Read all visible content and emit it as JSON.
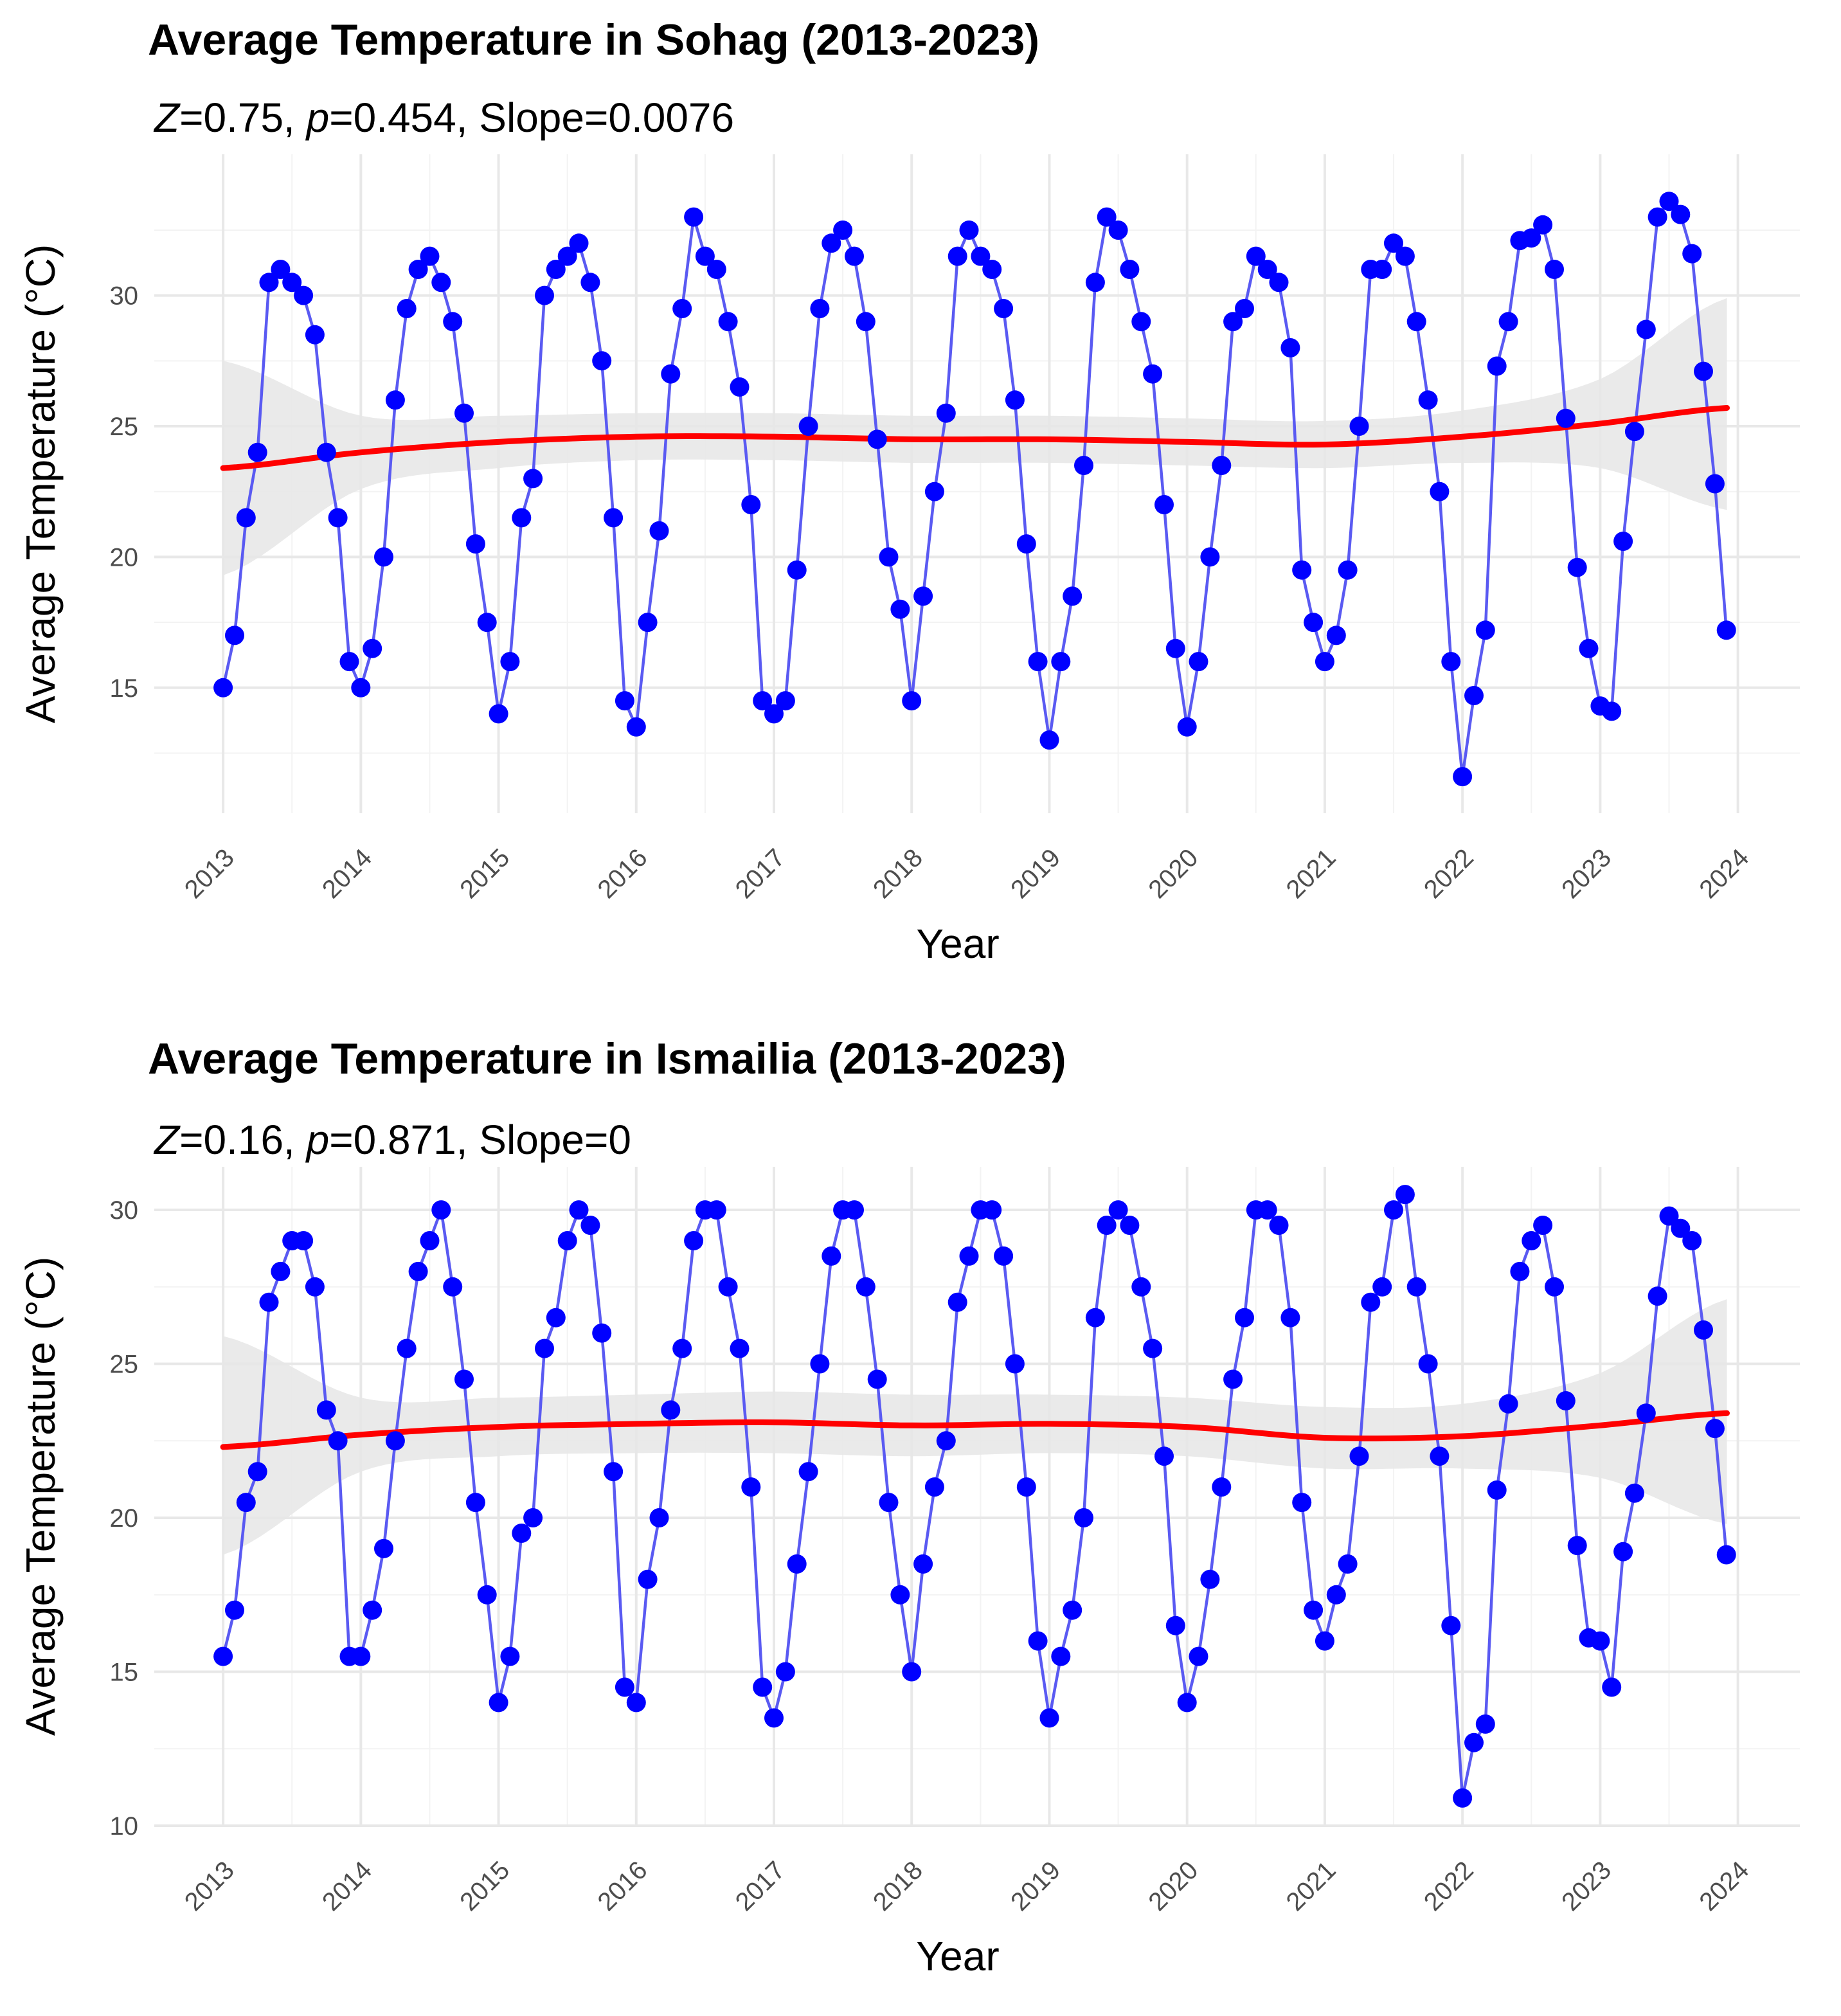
{
  "colors": {
    "series_line": "#5a5af2",
    "series_point": "#0000ff",
    "trend": "#ff0000",
    "band": "#e6e6e6",
    "grid_major": "#e8e8e8",
    "grid_minor": "#f3f3f3",
    "tick_text": "#4d4d4d",
    "title_text": "#000000"
  },
  "chart_data": [
    {
      "type": "line",
      "title": "Average Temperature in Sohag (2013-2023)",
      "subtitle": {
        "z_label": "Z",
        "z_value": "=0.75,",
        "p_label": "p",
        "p_value": "=0.454,",
        "slope": "Slope=0.0076"
      },
      "xlabel": "Year",
      "ylabel": "Average Temperature (°C)",
      "xlim": [
        2012.5,
        2024.45
      ],
      "ylim": [
        10.2,
        35.4
      ],
      "x_ticks": [
        "2013",
        "2014",
        "2015",
        "2016",
        "2017",
        "2018",
        "2019",
        "2020",
        "2021",
        "2022",
        "2023",
        "2024"
      ],
      "y_ticks": [
        "15",
        "20",
        "25",
        "30"
      ],
      "y_tick_values": [
        15,
        20,
        25,
        30
      ],
      "x_start": 2013,
      "x_step": 0.0833333,
      "series": [
        {
          "name": "Average Temperature",
          "values": [
            15,
            17,
            21.5,
            24,
            30.5,
            31,
            30.5,
            30,
            28.5,
            24,
            21.5,
            16,
            15,
            16.5,
            20,
            26,
            29.5,
            31,
            31.5,
            30.5,
            29,
            25.5,
            20.5,
            17.5,
            14,
            16,
            21.5,
            23,
            30,
            31,
            31.5,
            32,
            30.5,
            27.5,
            21.5,
            14.5,
            13.5,
            17.5,
            21,
            27,
            29.5,
            33,
            31.5,
            31,
            29,
            26.5,
            22,
            14.5,
            14,
            14.5,
            19.5,
            25,
            29.5,
            32,
            32.5,
            31.5,
            29,
            24.5,
            20,
            18,
            14.5,
            18.5,
            22.5,
            25.5,
            31.5,
            32.5,
            31.5,
            31,
            29.5,
            26,
            20.5,
            16,
            13,
            16,
            18.5,
            23.5,
            30.5,
            33,
            32.5,
            31,
            29,
            27,
            22,
            16.5,
            13.5,
            16,
            20,
            23.5,
            29,
            29.5,
            31.5,
            31,
            30.5,
            28,
            19.5,
            17.5,
            16,
            17,
            19.5,
            25,
            31,
            31,
            32,
            31.5,
            29,
            26,
            22.5,
            16,
            11.6,
            14.7,
            17.2,
            27.3,
            29,
            32.1,
            32.2,
            32.7,
            31,
            25.3,
            19.6,
            16.5,
            14.3,
            14.1,
            20.6,
            24.8,
            28.7,
            33,
            33.6,
            33.1,
            31.6,
            27.1,
            22.8,
            17.2
          ]
        }
      ],
      "trend": {
        "x": [
          2013,
          2014,
          2015,
          2016,
          2017,
          2018,
          2019,
          2020,
          2021,
          2022,
          2023,
          2023.92
        ],
        "y": [
          23.4,
          24.0,
          24.4,
          24.6,
          24.6,
          24.5,
          24.5,
          24.4,
          24.3,
          24.6,
          25.1,
          25.7
        ],
        "ci_low": [
          19.3,
          22.6,
          23.4,
          23.7,
          23.7,
          23.6,
          23.6,
          23.5,
          23.4,
          23.6,
          23.4,
          21.8
        ],
        "ci_high": [
          27.5,
          25.4,
          25.4,
          25.5,
          25.5,
          25.4,
          25.4,
          25.3,
          25.2,
          25.6,
          26.8,
          29.9
        ]
      }
    },
    {
      "type": "line",
      "title": "Average Temperature in Ismailia (2013-2023)",
      "subtitle": {
        "z_label": "Z",
        "z_value": "=0.16,",
        "p_label": "p",
        "p_value": "=0.871,",
        "slope": "Slope=0"
      },
      "xlabel": "Year",
      "ylabel": "Average Temperature (°C)",
      "xlim": [
        2012.5,
        2024.45
      ],
      "ylim": [
        10,
        31.4
      ],
      "x_ticks": [
        "2013",
        "2014",
        "2015",
        "2016",
        "2017",
        "2018",
        "2019",
        "2020",
        "2021",
        "2022",
        "2023",
        "2024"
      ],
      "y_ticks": [
        "10",
        "15",
        "20",
        "25",
        "30"
      ],
      "y_tick_values": [
        10,
        15,
        20,
        25,
        30
      ],
      "x_start": 2013,
      "x_step": 0.0833333,
      "series": [
        {
          "name": "Average Temperature",
          "values": [
            15.5,
            17,
            20.5,
            21.5,
            27,
            28,
            29,
            29,
            27.5,
            23.5,
            22.5,
            15.5,
            15.5,
            17,
            19,
            22.5,
            25.5,
            28,
            29,
            30,
            27.5,
            24.5,
            20.5,
            17.5,
            14,
            15.5,
            19.5,
            20,
            25.5,
            26.5,
            29,
            30,
            29.5,
            26,
            21.5,
            14.5,
            14,
            18,
            20,
            23.5,
            25.5,
            29,
            30,
            30,
            27.5,
            25.5,
            21,
            14.5,
            13.5,
            15,
            18.5,
            21.5,
            25,
            28.5,
            30,
            30,
            27.5,
            24.5,
            20.5,
            17.5,
            15,
            18.5,
            21,
            22.5,
            27,
            28.5,
            30,
            30,
            28.5,
            25,
            21,
            16,
            13.5,
            15.5,
            17,
            20,
            26.5,
            29.5,
            30,
            29.5,
            27.5,
            25.5,
            22,
            16.5,
            14,
            15.5,
            18,
            21,
            24.5,
            26.5,
            30,
            30,
            29.5,
            26.5,
            20.5,
            17,
            16,
            17.5,
            18.5,
            22,
            27,
            27.5,
            30,
            30.5,
            27.5,
            25,
            22,
            16.5,
            10.9,
            12.7,
            13.3,
            20.9,
            23.7,
            28,
            29,
            29.5,
            27.5,
            23.8,
            19.1,
            16.1,
            16,
            14.5,
            18.9,
            20.8,
            23.4,
            27.2,
            29.8,
            29.4,
            29,
            26.1,
            22.9,
            18.8
          ]
        }
      ],
      "trend": {
        "x": [
          2013,
          2014,
          2015,
          2016,
          2017,
          2018,
          2019,
          2020,
          2021,
          2022,
          2023,
          2023.92
        ],
        "y": [
          22.3,
          22.7,
          22.95,
          23.05,
          23.1,
          23.0,
          23.05,
          22.95,
          22.6,
          22.65,
          23.0,
          23.4
        ],
        "ci_low": [
          18.8,
          21.5,
          22.0,
          22.1,
          22.1,
          22.0,
          22.1,
          22.0,
          21.6,
          21.6,
          21.3,
          19.8
        ],
        "ci_high": [
          25.9,
          23.9,
          23.9,
          24.0,
          24.1,
          24.0,
          24.0,
          23.9,
          23.6,
          23.7,
          24.7,
          27.1
        ]
      }
    }
  ]
}
